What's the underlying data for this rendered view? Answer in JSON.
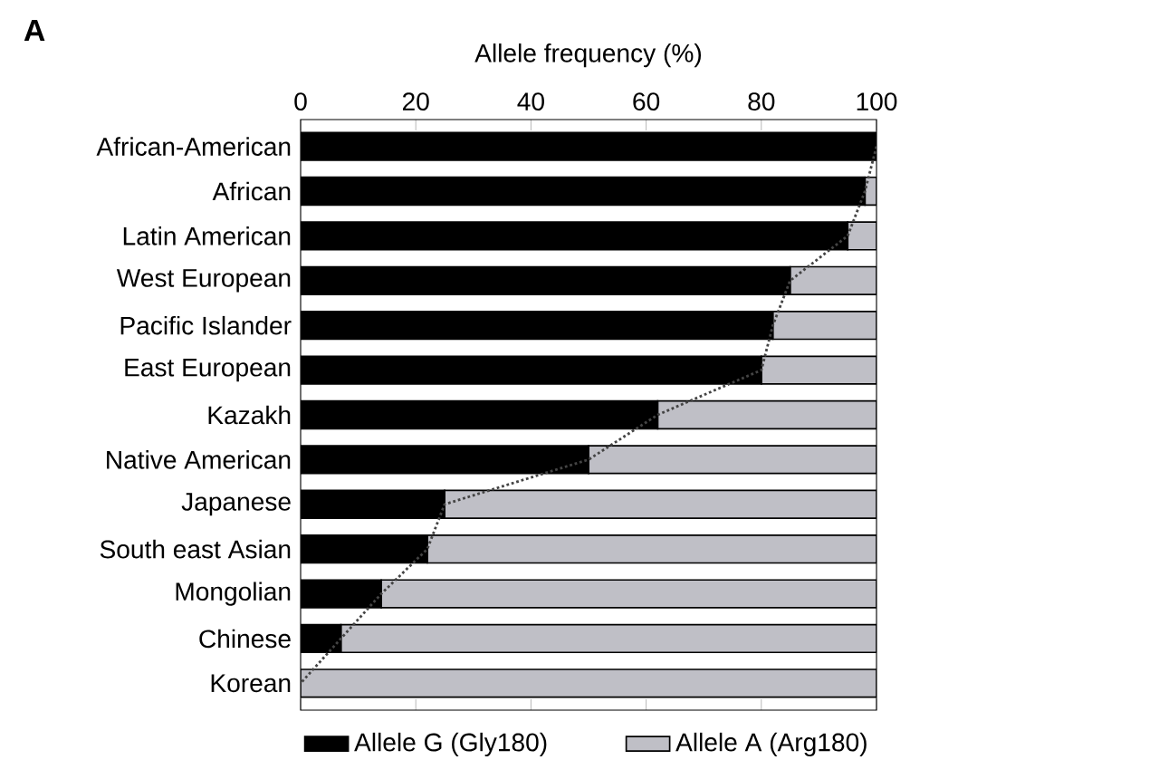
{
  "chart_data": {
    "type": "bar",
    "orientation": "horizontal",
    "stacked": true,
    "xlabel": "Allele frequency (%)",
    "annotations": [
      "A"
    ],
    "categories": [
      "African-American",
      "African",
      "Latin American",
      "West European",
      "Pacific Islander",
      "East European",
      "Kazakh",
      "Native American",
      "Japanese",
      "South east Asian",
      "Mongolian",
      "Chinese",
      "Korean"
    ],
    "series": [
      {
        "name": "Allele G (Gly180)",
        "color": "#000000",
        "values": [
          100,
          98,
          95,
          85,
          82,
          80,
          62,
          50,
          25,
          22,
          14,
          7,
          0
        ]
      },
      {
        "name": "Allele A (Arg180)",
        "color": "#bfbfc6",
        "values": [
          0,
          2,
          5,
          15,
          18,
          20,
          38,
          50,
          75,
          78,
          86,
          93,
          100
        ]
      },
      {
        "type": "line",
        "line_style": "dotted",
        "marker": "none",
        "color": "#444444",
        "values": [
          100,
          98,
          95,
          85,
          82,
          80,
          62,
          50,
          25,
          22,
          14,
          7,
          0
        ]
      }
    ],
    "xlim": [
      0,
      100
    ],
    "xticks": [
      0,
      20,
      40,
      60,
      80,
      100
    ],
    "legend": "bottom",
    "grid": false
  }
}
